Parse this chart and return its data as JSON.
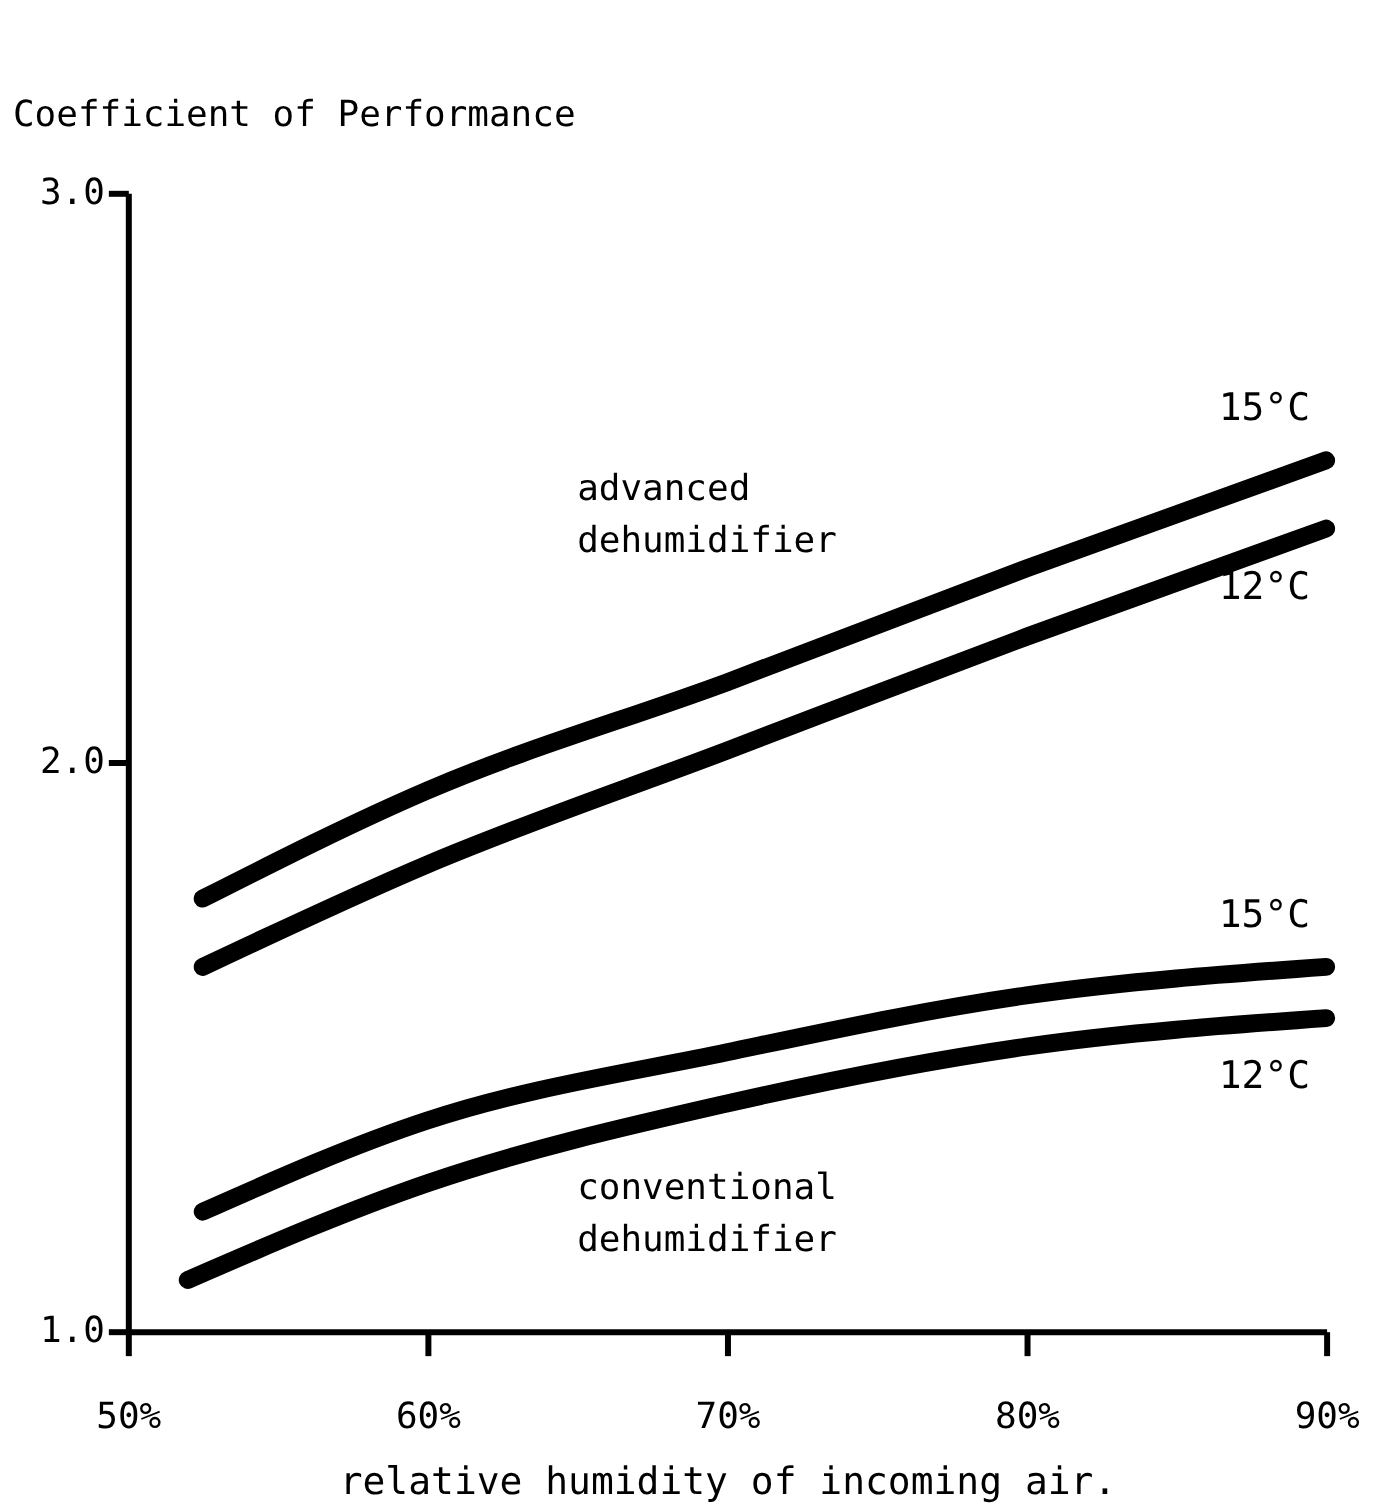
{
  "chart_data": {
    "type": "line",
    "xlabel": "relative humidity of incoming air.",
    "ylabel": "Coefficient of Performance",
    "xlim": [
      50,
      90
    ],
    "ylim": [
      1.0,
      3.0
    ],
    "xticks": [
      {
        "value": 50,
        "label": "50%"
      },
      {
        "value": 60,
        "label": "60%"
      },
      {
        "value": 70,
        "label": "70%"
      },
      {
        "value": 80,
        "label": "80%"
      },
      {
        "value": 90,
        "label": "90%"
      }
    ],
    "yticks": [
      {
        "value": 1,
        "label": "1.0"
      },
      {
        "value": 2,
        "label": "2.0"
      },
      {
        "value": 3,
        "label": "3.0"
      }
    ],
    "grid": false,
    "legend": false,
    "marker": "none",
    "line_style": "solid",
    "series": [
      {
        "name": "15°C",
        "color": "#000000",
        "x": [
          52.5,
          60,
          70,
          80,
          90
        ],
        "values": [
          1.76,
          1.95,
          2.14,
          2.34,
          2.53
        ]
      },
      {
        "name": "12°C",
        "color": "#000000",
        "x": [
          52.5,
          60,
          70,
          80,
          90
        ],
        "values": [
          1.64,
          1.82,
          2.02,
          2.22,
          2.41
        ]
      },
      {
        "name": "15°C",
        "color": "#000000",
        "x": [
          52.5,
          60,
          70,
          80,
          90
        ],
        "values": [
          1.21,
          1.37,
          1.49,
          1.59,
          1.64
        ]
      },
      {
        "name": "12°C",
        "color": "#000000",
        "x": [
          52,
          60,
          70,
          80,
          90
        ],
        "values": [
          1.09,
          1.26,
          1.4,
          1.5,
          1.55
        ]
      }
    ],
    "annotations": [
      "advanced\ndehumidifier",
      "conventional\ndehumidifier"
    ]
  }
}
